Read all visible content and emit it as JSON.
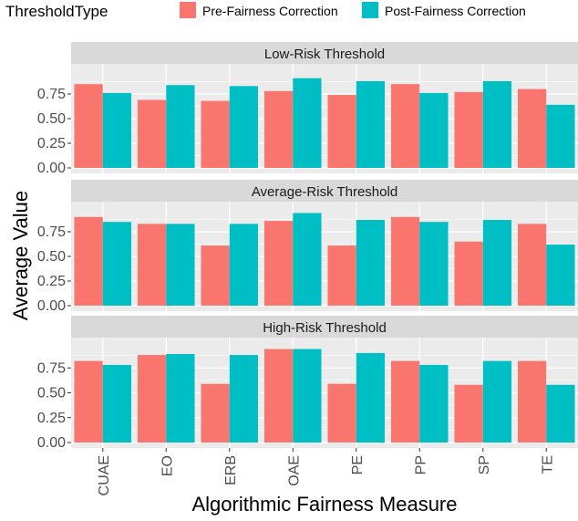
{
  "chart_data": {
    "type": "bar",
    "layout": "facet-rows",
    "xlabel": "Algorithmic Fairness Measure",
    "ylabel": "Average Value",
    "ylim": [
      0,
      1.0
    ],
    "yticks": [
      "0.00",
      "0.25",
      "0.50",
      "0.75"
    ],
    "ytick_values": [
      0,
      0.25,
      0.5,
      0.75
    ],
    "categories": [
      "CUAE",
      "EO",
      "ERB",
      "OAE",
      "PE",
      "PP",
      "SP",
      "TE"
    ],
    "legend": {
      "title": "ThresholdType",
      "position": "top",
      "entries": [
        "Pre-Fairness Correction",
        "Post-Fairness Correction"
      ]
    },
    "colors": {
      "pre": "#F8766D",
      "post": "#00BFC4",
      "panel": "#EBEBEB",
      "strip": "#D9D9D9",
      "grid": "#FFFFFF"
    },
    "grid": true,
    "panels": [
      {
        "title": "Low-Risk Threshold",
        "series": [
          {
            "name": "Pre-Fairness Correction",
            "values": [
              0.85,
              0.69,
              0.68,
              0.78,
              0.74,
              0.85,
              0.77,
              0.8
            ]
          },
          {
            "name": "Post-Fairness Correction",
            "values": [
              0.76,
              0.84,
              0.83,
              0.91,
              0.88,
              0.76,
              0.88,
              0.64
            ]
          }
        ]
      },
      {
        "title": "Average-Risk Threshold",
        "series": [
          {
            "name": "Pre-Fairness Correction",
            "values": [
              0.9,
              0.83,
              0.61,
              0.86,
              0.61,
              0.9,
              0.65,
              0.83
            ]
          },
          {
            "name": "Post-Fairness Correction",
            "values": [
              0.85,
              0.83,
              0.83,
              0.94,
              0.87,
              0.85,
              0.87,
              0.62
            ]
          }
        ]
      },
      {
        "title": "High-Risk Threshold",
        "series": [
          {
            "name": "Pre-Fairness Correction",
            "values": [
              0.82,
              0.88,
              0.59,
              0.94,
              0.59,
              0.82,
              0.58,
              0.82
            ]
          },
          {
            "name": "Post-Fairness Correction",
            "values": [
              0.78,
              0.89,
              0.88,
              0.94,
              0.9,
              0.78,
              0.82,
              0.58
            ]
          }
        ]
      }
    ]
  }
}
